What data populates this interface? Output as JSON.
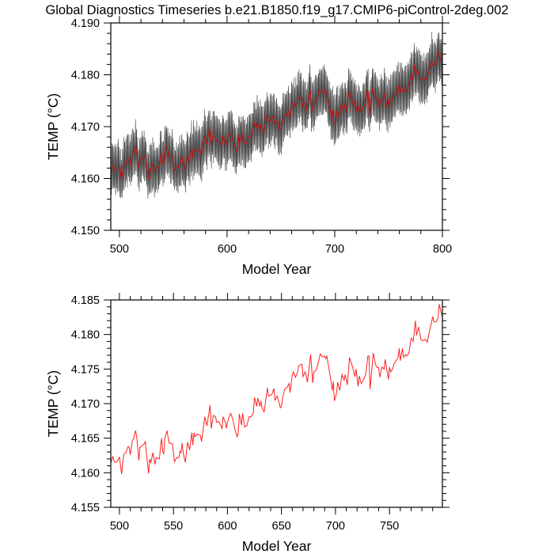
{
  "title": "Global Diagnostics Timeseries b.e21.B1850.f19_g17.CMIP6-piControl-2deg.002",
  "colors": {
    "annual": "#ff2020",
    "annual_top": "#cc1010",
    "monthly": "#1a1a1a",
    "axis": "#000000"
  },
  "annual": {
    "years": [
      492,
      494,
      495,
      497,
      499,
      500,
      502,
      504,
      506,
      508,
      509,
      510,
      512,
      513,
      515,
      516,
      518,
      519,
      521,
      523,
      524,
      525,
      527,
      528,
      529,
      531,
      533,
      534,
      537,
      538,
      539,
      540,
      541,
      542,
      544,
      546,
      549,
      551,
      553,
      555,
      556,
      557,
      558,
      559,
      561,
      563,
      565,
      567,
      568,
      569,
      570,
      572,
      575,
      576,
      578,
      579,
      581,
      584,
      585,
      587,
      589,
      590,
      592,
      593,
      595,
      596,
      598,
      599,
      600,
      602,
      603,
      605,
      607,
      609,
      610,
      611,
      613,
      614,
      616,
      618,
      620,
      622,
      624,
      625,
      627,
      628,
      630,
      631,
      632,
      634,
      637,
      638,
      641,
      643,
      644,
      646,
      649,
      650,
      651,
      653,
      655,
      657,
      658,
      660,
      661,
      663,
      665,
      666,
      669,
      670,
      672,
      674,
      677,
      679,
      680,
      682,
      683,
      686,
      688,
      690,
      691,
      692,
      694,
      696,
      697,
      698,
      699,
      701,
      702,
      704,
      706,
      708,
      709,
      711,
      713,
      716,
      718,
      719,
      721,
      722,
      724,
      726,
      728,
      730,
      731,
      732,
      735,
      737,
      738,
      740,
      741,
      743,
      745,
      746,
      749,
      750,
      751,
      753,
      754,
      756,
      758,
      759,
      760,
      762,
      763,
      765,
      766,
      768,
      770,
      772,
      774,
      775,
      777,
      779,
      781,
      783,
      785,
      787,
      788,
      790,
      791,
      793,
      795,
      796,
      799
    ],
    "temps": [
      4.1614,
      4.1624,
      4.1616,
      4.1615,
      4.1619,
      4.1623,
      4.1598,
      4.1627,
      4.1629,
      4.1638,
      4.1637,
      4.1626,
      4.1647,
      4.1649,
      4.1661,
      4.1652,
      4.1618,
      4.1637,
      4.1639,
      4.1642,
      4.1645,
      4.1627,
      4.1599,
      4.162,
      4.1614,
      4.1629,
      4.1612,
      4.1622,
      4.162,
      4.1637,
      4.165,
      4.1631,
      4.1627,
      4.165,
      4.1661,
      4.1643,
      4.1642,
      4.1616,
      4.1622,
      4.1622,
      4.1631,
      4.1629,
      4.1643,
      4.1629,
      4.1615,
      4.1644,
      4.1633,
      4.1658,
      4.164,
      4.1658,
      4.1652,
      4.1656,
      4.1654,
      4.1645,
      4.1669,
      4.1681,
      4.1668,
      4.1698,
      4.1664,
      4.1683,
      4.1681,
      4.1673,
      4.1674,
      4.1671,
      4.1664,
      4.1681,
      4.1673,
      4.1664,
      4.1673,
      4.1683,
      4.1686,
      4.1677,
      4.1662,
      4.1652,
      4.1658,
      4.1685,
      4.1669,
      4.1686,
      4.1666,
      4.1668,
      4.1681,
      4.1681,
      4.1687,
      4.1709,
      4.1696,
      4.1708,
      4.1696,
      4.1704,
      4.1694,
      4.1688,
      4.1723,
      4.1711,
      4.1713,
      4.1722,
      4.1705,
      4.1711,
      4.1694,
      4.1696,
      4.1708,
      4.1721,
      4.1723,
      4.1729,
      4.1716,
      4.1742,
      4.1746,
      4.1738,
      4.1746,
      4.1755,
      4.1757,
      4.1739,
      4.1746,
      4.1731,
      4.1771,
      4.173,
      4.1746,
      4.1748,
      4.1753,
      4.1772,
      4.1767,
      4.1769,
      4.1765,
      4.1769,
      4.175,
      4.1731,
      4.1719,
      4.1732,
      4.1704,
      4.1715,
      4.1731,
      4.1719,
      4.1742,
      4.1734,
      4.1742,
      4.1727,
      4.1767,
      4.1752,
      4.1739,
      4.175,
      4.1725,
      4.174,
      4.1729,
      4.1735,
      4.1742,
      4.1769,
      4.1769,
      4.1721,
      4.1773,
      4.1757,
      4.1753,
      4.1752,
      4.1738,
      4.1753,
      4.175,
      4.1764,
      4.1735,
      4.1753,
      4.1746,
      4.175,
      4.1757,
      4.1762,
      4.1767,
      4.178,
      4.1762,
      4.178,
      4.1767,
      4.1771,
      4.1769,
      4.1773,
      4.1795,
      4.179,
      4.182,
      4.1799,
      4.1811,
      4.1793,
      4.1791,
      4.1793,
      4.1789,
      4.1805,
      4.1811,
      4.1826,
      4.1819,
      4.1818,
      4.1824,
      4.1844,
      4.1824
    ]
  },
  "chart_data": [
    {
      "type": "line",
      "name": "top-panel",
      "title": "Global Diagnostics Timeseries b.e21.B1850.f19_g17.CMIP6-piControl-2deg.002",
      "xlabel": "Model Year",
      "ylabel": "TEMP (°C)",
      "xlim": [
        492,
        800
      ],
      "ylim": [
        4.15,
        4.19
      ],
      "xticks": [
        500,
        600,
        700,
        800
      ],
      "xtick_labels": [
        "500",
        "600",
        "700",
        "800"
      ],
      "xminor_step": 20,
      "yticks": [
        4.15,
        4.16,
        4.17,
        4.18,
        4.19
      ],
      "ytick_labels": [
        "4.150",
        "4.160",
        "4.170",
        "4.180",
        "4.190"
      ],
      "yminor_step": 0.002,
      "series": [
        {
          "name": "monthly",
          "description_source": "annual",
          "seasonal_amplitude": 0.0042
        },
        {
          "name": "annual mean",
          "source": "annual"
        }
      ],
      "grid": false
    },
    {
      "type": "line",
      "name": "bottom-panel",
      "xlabel": "Model Year",
      "ylabel": "TEMP (°C)",
      "xlim": [
        492,
        799
      ],
      "ylim": [
        4.155,
        4.185
      ],
      "xticks": [
        500,
        550,
        600,
        650,
        700,
        750
      ],
      "xtick_labels": [
        "500",
        "550",
        "600",
        "650",
        "700",
        "750"
      ],
      "xminor_step": 10,
      "yticks": [
        4.155,
        4.16,
        4.165,
        4.17,
        4.175,
        4.18,
        4.185
      ],
      "ytick_labels": [
        "4.155",
        "4.160",
        "4.165",
        "4.170",
        "4.175",
        "4.180",
        "4.185"
      ],
      "yminor_step": 0.001,
      "series": [
        {
          "name": "annual mean",
          "source": "annual"
        }
      ],
      "grid": false
    }
  ]
}
